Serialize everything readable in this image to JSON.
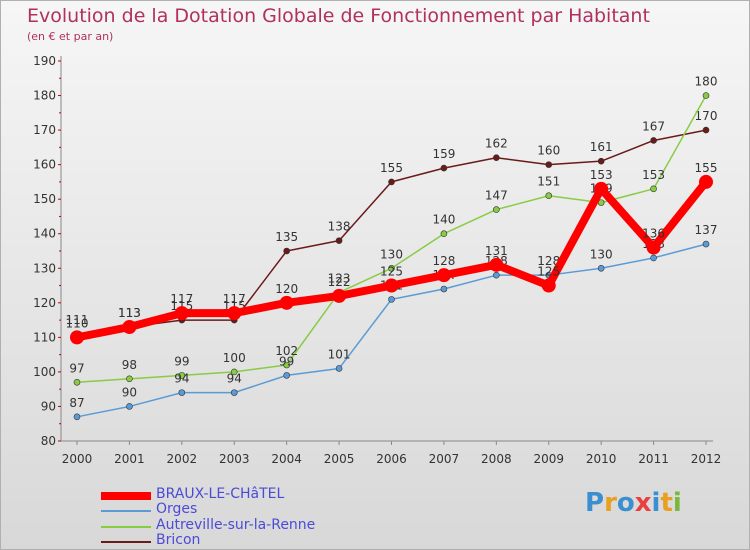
{
  "chart_data": {
    "type": "line",
    "title": "Evolution de la Dotation Globale de Fonctionnement par Habitant",
    "subtitle": "(en € et par an)",
    "x": [
      "2000",
      "2001",
      "2002",
      "2003",
      "2004",
      "2005",
      "2006",
      "2007",
      "2008",
      "2009",
      "2010",
      "2011",
      "2012"
    ],
    "yticks": [
      80,
      90,
      100,
      110,
      120,
      130,
      140,
      150,
      160,
      170,
      180,
      190
    ],
    "ylim": [
      80,
      190
    ],
    "grid": false,
    "legend_position": "bottom-left",
    "series": [
      {
        "name": "Bricon",
        "color": "#6b1a1a",
        "values": [
          111,
          113,
          115,
          115,
          135,
          138,
          155,
          159,
          162,
          160,
          161,
          167,
          170
        ]
      },
      {
        "name": "Autreville-sur-la-Renne",
        "color": "#88cc44",
        "values": [
          97,
          98,
          99,
          100,
          102,
          123,
          130,
          140,
          147,
          151,
          149,
          153,
          180
        ]
      },
      {
        "name": "Orges",
        "color": "#5b9bd5",
        "values": [
          87,
          90,
          94,
          94,
          99,
          101,
          121,
          124,
          128,
          128,
          130,
          133,
          137
        ]
      },
      {
        "name": "BRAUX-LE-CHâTEL",
        "color": "#ff0000",
        "values": [
          110,
          113,
          117,
          117,
          120,
          122,
          125,
          128,
          131,
          125,
          153,
          136,
          155
        ]
      }
    ]
  },
  "legend": [
    {
      "label": "BRAUX-LE-CHâTEL",
      "color": "#ff0000"
    },
    {
      "label": "Orges",
      "color": "#5b9bd5"
    },
    {
      "label": "Autreville-sur-la-Renne",
      "color": "#88cc44"
    },
    {
      "label": "Bricon",
      "color": "#6b1a1a"
    }
  ],
  "logo": {
    "letters": [
      "P",
      "r",
      "o",
      "x",
      "i",
      "t",
      "i"
    ],
    "colors": [
      "#3a8fd0",
      "#e8a020",
      "#3a8fd0",
      "#e84040",
      "#3a8fd0",
      "#e8a020",
      "#78b83a"
    ]
  }
}
